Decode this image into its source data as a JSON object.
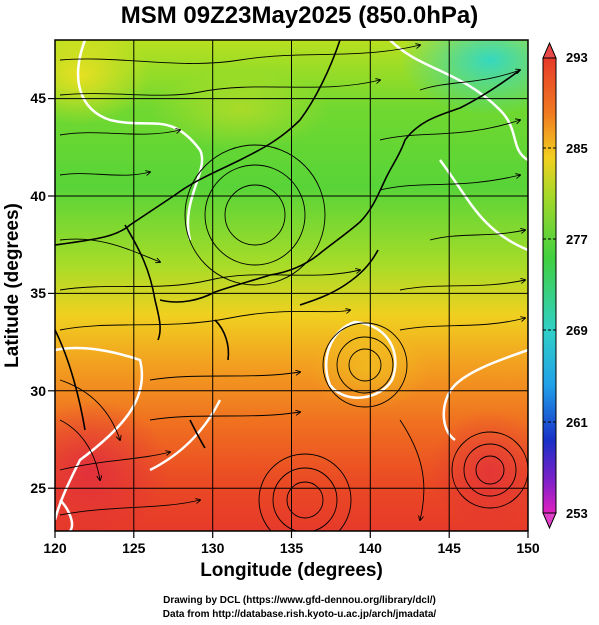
{
  "title": "MSM 09Z23May2025 (850.0hPa)",
  "xaxis": {
    "label": "Longitude (degrees)",
    "range": [
      120,
      150
    ],
    "ticks": [
      "120",
      "125",
      "130",
      "135",
      "140",
      "145",
      "150"
    ]
  },
  "yaxis": {
    "label": "Latitude  (degrees)",
    "range": [
      22.4,
      47.6
    ],
    "ticks": [
      "25",
      "30",
      "35",
      "40",
      "45"
    ]
  },
  "colorbar": {
    "min": 253,
    "max": 293,
    "ticks": [
      "293",
      "285",
      "277",
      "269",
      "261",
      "253"
    ]
  },
  "credits": {
    "line1": "Drawing by DCL (https://www.gfd-dennou.org/library/dcl/)",
    "line2": "Data from http://database.rish.kyoto-u.ac.jp/arch/jmadata/"
  },
  "colors": {
    "warm": "#e83a2a",
    "orange": "#f29a1e",
    "yellow": "#f0e018",
    "green": "#3cd23c",
    "cyan": "#3cd8b8",
    "blue": "#1030c8",
    "magenta": "#e020c0",
    "contour": "#ffffff"
  }
}
